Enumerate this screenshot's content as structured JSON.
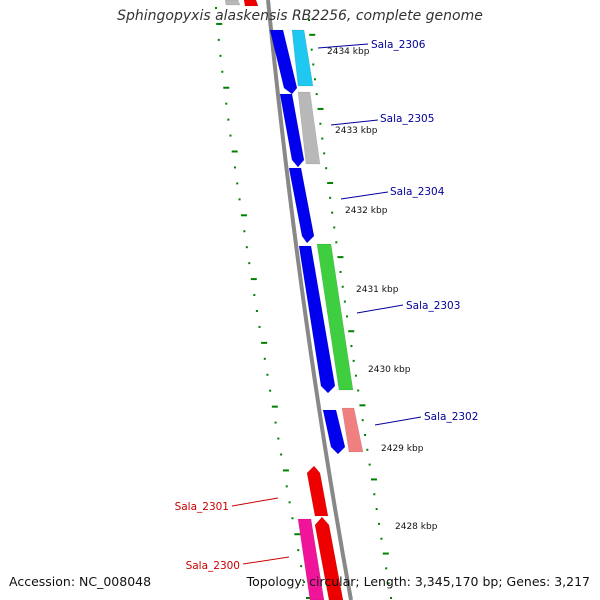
{
  "title": "Sphingopyxis alaskensis RB2256, complete genome",
  "footer": {
    "accession": "Accession: NC_008048",
    "topology": "Topology: circular; Length: 3,345,170 bp; Genes: 3,217"
  },
  "colors": {
    "backbone": "#888888",
    "ticks": "#008000",
    "label_forward": "#000099",
    "label_reverse": "#cc0000",
    "cds_blue": "#0000ee",
    "cds_cyan": "#1ec8f0",
    "cds_gray": "#b8b8b8",
    "cds_green": "#3fce3f",
    "cds_salmon": "#f08080",
    "cds_red": "#ee0000",
    "cds_magenta": "#f0149b"
  },
  "kbp_labels": [
    "2434 kbp",
    "2433 kbp",
    "2432 kbp",
    "2431 kbp",
    "2430 kbp",
    "2429 kbp",
    "2428 kbp"
  ],
  "genes": [
    {
      "name": "Sala_2306",
      "strand": "forward"
    },
    {
      "name": "Sala_2305",
      "strand": "forward"
    },
    {
      "name": "Sala_2304",
      "strand": "forward"
    },
    {
      "name": "Sala_2303",
      "strand": "forward"
    },
    {
      "name": "Sala_2302",
      "strand": "forward"
    },
    {
      "name": "Sala_2301",
      "strand": "reverse"
    },
    {
      "name": "Sala_2300",
      "strand": "reverse"
    }
  ]
}
